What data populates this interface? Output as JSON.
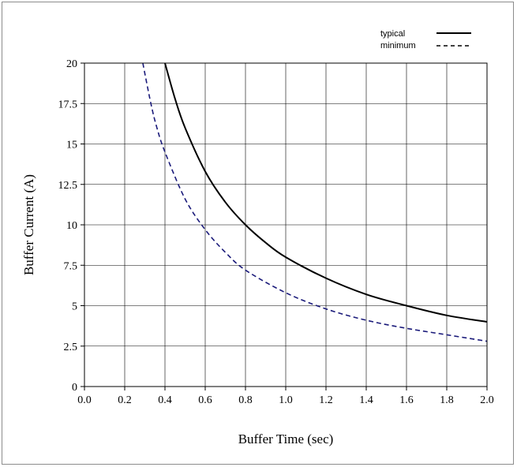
{
  "chart_data": {
    "type": "line",
    "xlabel": "Buffer Time (sec)",
    "ylabel": "Buffer  Current  (A)",
    "xlim": [
      0,
      2.0
    ],
    "ylim": [
      0,
      20
    ],
    "x_ticks": [
      "0.0",
      "0.2",
      "0.4",
      "0.6",
      "0.8",
      "1.0",
      "1.2",
      "1.4",
      "1.6",
      "1.8",
      "2.0"
    ],
    "y_ticks": [
      "0",
      "2.5",
      "5",
      "7.5",
      "10",
      "12.5",
      "15",
      "17.5",
      "20"
    ],
    "grid": true,
    "legend_position": "top-right",
    "series": [
      {
        "name": "typical",
        "color": "#000000",
        "style": "solid",
        "x": [
          0.4,
          0.45,
          0.5,
          0.6,
          0.7,
          0.8,
          0.9,
          1.0,
          1.2,
          1.4,
          1.6,
          1.8,
          2.0
        ],
        "y": [
          20.0,
          17.8,
          16.0,
          13.3,
          11.4,
          10.0,
          8.9,
          8.0,
          6.7,
          5.7,
          5.0,
          4.4,
          4.0
        ]
      },
      {
        "name": "minimum",
        "color": "#1a1a7a",
        "style": "dashed",
        "x": [
          0.29,
          0.33,
          0.36,
          0.4,
          0.5,
          0.6,
          0.7,
          0.8,
          1.0,
          1.2,
          1.4,
          1.6,
          1.8,
          2.0
        ],
        "y": [
          20.0,
          17.5,
          16.0,
          14.5,
          11.6,
          9.7,
          8.3,
          7.2,
          5.8,
          4.8,
          4.1,
          3.6,
          3.2,
          2.8
        ]
      }
    ]
  }
}
